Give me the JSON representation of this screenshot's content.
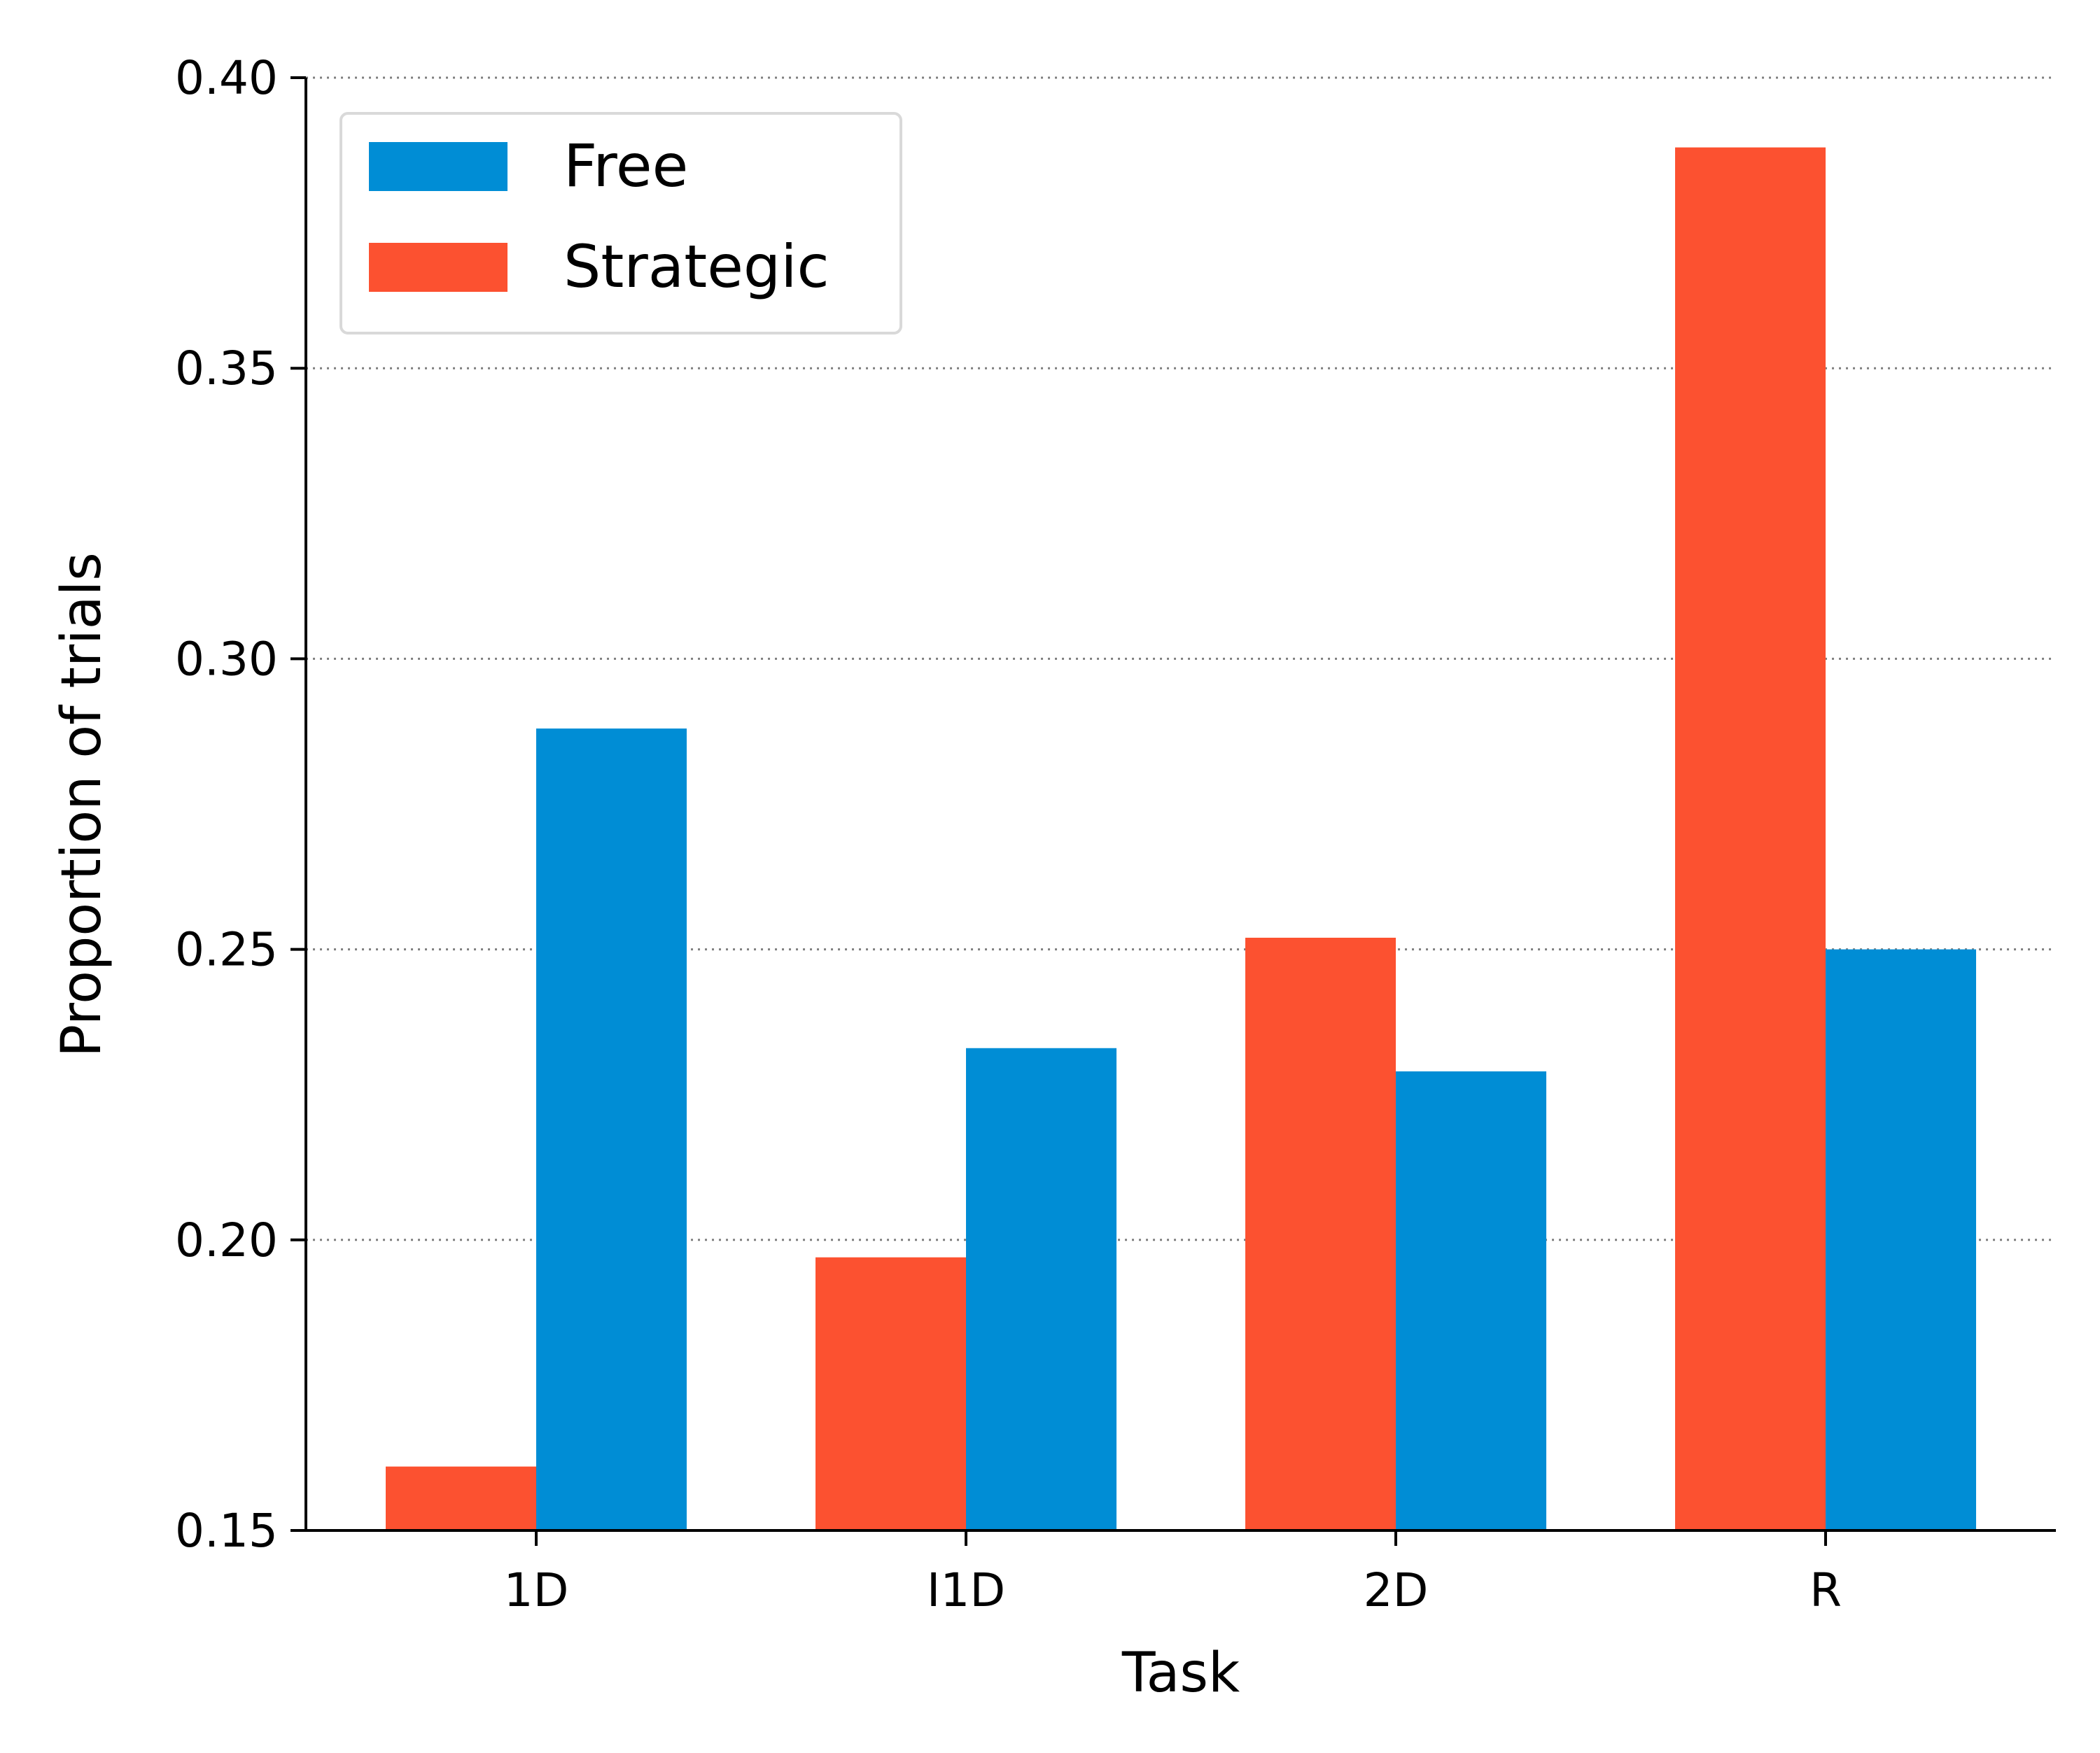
{
  "chart_data": {
    "type": "bar",
    "title": "",
    "xlabel": "Task",
    "ylabel": "Proportion of trials",
    "categories": [
      "1D",
      "I1D",
      "2D",
      "R"
    ],
    "series": [
      {
        "name": "Strategic",
        "color": "#fc5130",
        "values": [
          0.161,
          0.197,
          0.252,
          0.388
        ]
      },
      {
        "name": "Free",
        "color": "#008dd5",
        "values": [
          0.288,
          0.233,
          0.229,
          0.25
        ]
      }
    ],
    "legend_order": [
      "Free",
      "Strategic"
    ],
    "legend_position": "top-left",
    "ylim": [
      0.15,
      0.4
    ],
    "yticks": [
      "0.15",
      "0.20",
      "0.25",
      "0.30",
      "0.35",
      "0.40"
    ],
    "grid": "horizontal dotted"
  }
}
